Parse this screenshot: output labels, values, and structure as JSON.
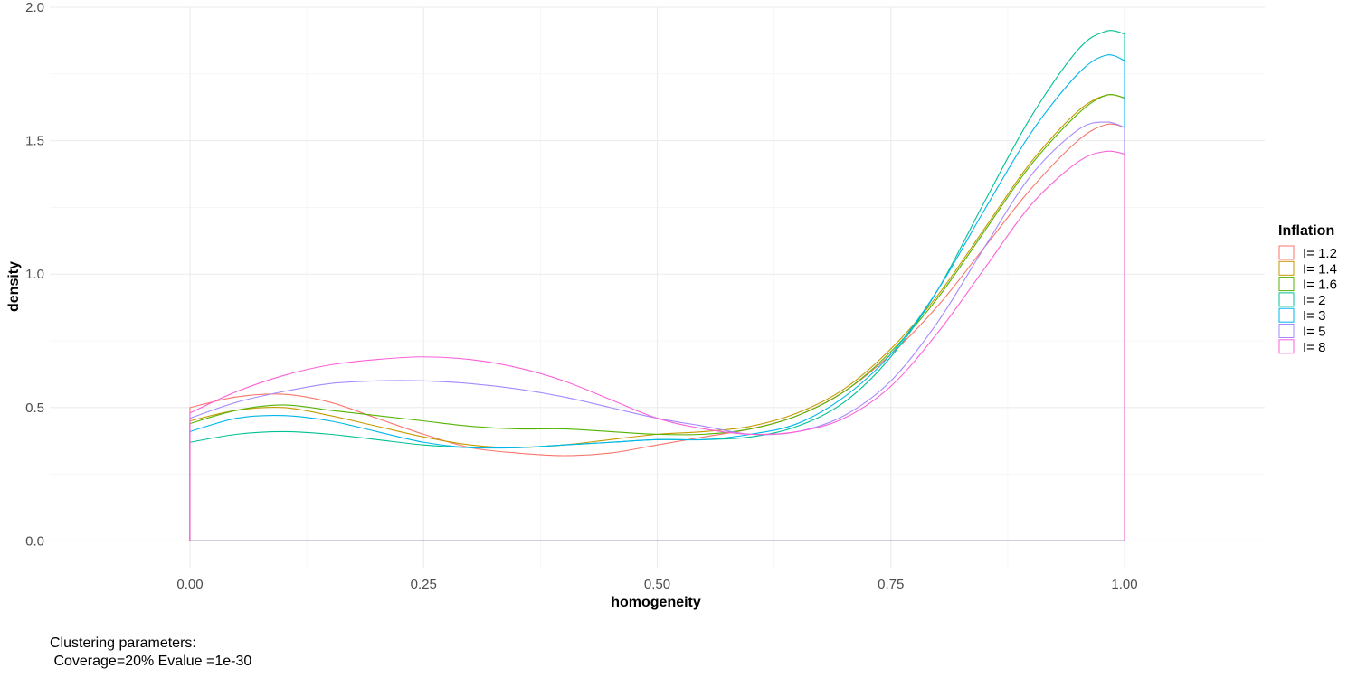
{
  "chart_data": {
    "type": "line",
    "xlabel": "homogeneity",
    "ylabel": "density",
    "xlim": [
      -0.15,
      1.15
    ],
    "ylim": [
      -0.1,
      2.0
    ],
    "x_ticks": [
      0,
      0.25,
      0.5,
      0.75,
      1.0
    ],
    "x_tick_labels": [
      "0.00",
      "0.25",
      "0.50",
      "0.75",
      "1.00"
    ],
    "y_ticks": [
      0,
      0.5,
      1.0,
      1.5,
      2.0
    ],
    "y_tick_labels": [
      "0.0",
      "0.5",
      "1.0",
      "1.5",
      "2.0"
    ],
    "grid": true,
    "legend": {
      "title": "Inflation",
      "position": "right"
    },
    "x": [
      0,
      0.05,
      0.1,
      0.15,
      0.2,
      0.25,
      0.3,
      0.35,
      0.4,
      0.45,
      0.5,
      0.55,
      0.6,
      0.65,
      0.7,
      0.75,
      0.8,
      0.85,
      0.9,
      0.95,
      0.98,
      1.0
    ],
    "series": [
      {
        "name": "I= 1.2",
        "color": "#F8766D",
        "values": [
          0.5,
          0.54,
          0.55,
          0.52,
          0.46,
          0.4,
          0.35,
          0.33,
          0.32,
          0.33,
          0.36,
          0.39,
          0.42,
          0.47,
          0.56,
          0.7,
          0.88,
          1.1,
          1.32,
          1.5,
          1.56,
          1.55
        ]
      },
      {
        "name": "I= 1.4",
        "color": "#C49A00",
        "values": [
          0.45,
          0.49,
          0.5,
          0.47,
          0.43,
          0.39,
          0.36,
          0.35,
          0.36,
          0.38,
          0.4,
          0.41,
          0.43,
          0.48,
          0.57,
          0.72,
          0.92,
          1.17,
          1.42,
          1.61,
          1.67,
          1.66
        ]
      },
      {
        "name": "I= 1.6",
        "color": "#53B400",
        "values": [
          0.44,
          0.49,
          0.51,
          0.49,
          0.47,
          0.45,
          0.43,
          0.42,
          0.42,
          0.41,
          0.4,
          0.4,
          0.42,
          0.47,
          0.56,
          0.71,
          0.91,
          1.16,
          1.41,
          1.6,
          1.67,
          1.66
        ]
      },
      {
        "name": "I= 2",
        "color": "#00C094",
        "values": [
          0.37,
          0.4,
          0.41,
          0.4,
          0.38,
          0.36,
          0.35,
          0.35,
          0.36,
          0.37,
          0.38,
          0.38,
          0.39,
          0.43,
          0.52,
          0.69,
          0.94,
          1.27,
          1.59,
          1.84,
          1.91,
          1.9
        ]
      },
      {
        "name": "I= 3",
        "color": "#00B6EB",
        "values": [
          0.41,
          0.46,
          0.47,
          0.45,
          0.41,
          0.37,
          0.35,
          0.35,
          0.36,
          0.37,
          0.38,
          0.38,
          0.4,
          0.44,
          0.54,
          0.7,
          0.94,
          1.24,
          1.53,
          1.75,
          1.82,
          1.8
        ]
      },
      {
        "name": "I= 5",
        "color": "#A58AFF",
        "values": [
          0.46,
          0.52,
          0.56,
          0.59,
          0.6,
          0.6,
          0.59,
          0.57,
          0.54,
          0.5,
          0.46,
          0.43,
          0.4,
          0.41,
          0.47,
          0.6,
          0.82,
          1.1,
          1.37,
          1.54,
          1.57,
          1.55
        ]
      },
      {
        "name": "I= 8",
        "color": "#FB61D7",
        "values": [
          0.48,
          0.56,
          0.62,
          0.66,
          0.68,
          0.69,
          0.68,
          0.65,
          0.6,
          0.53,
          0.46,
          0.42,
          0.4,
          0.41,
          0.46,
          0.58,
          0.78,
          1.02,
          1.26,
          1.42,
          1.46,
          1.45
        ]
      }
    ]
  },
  "caption": {
    "line1": "Clustering parameters:",
    "line2": " Coverage=20% Evalue =1e-30"
  }
}
